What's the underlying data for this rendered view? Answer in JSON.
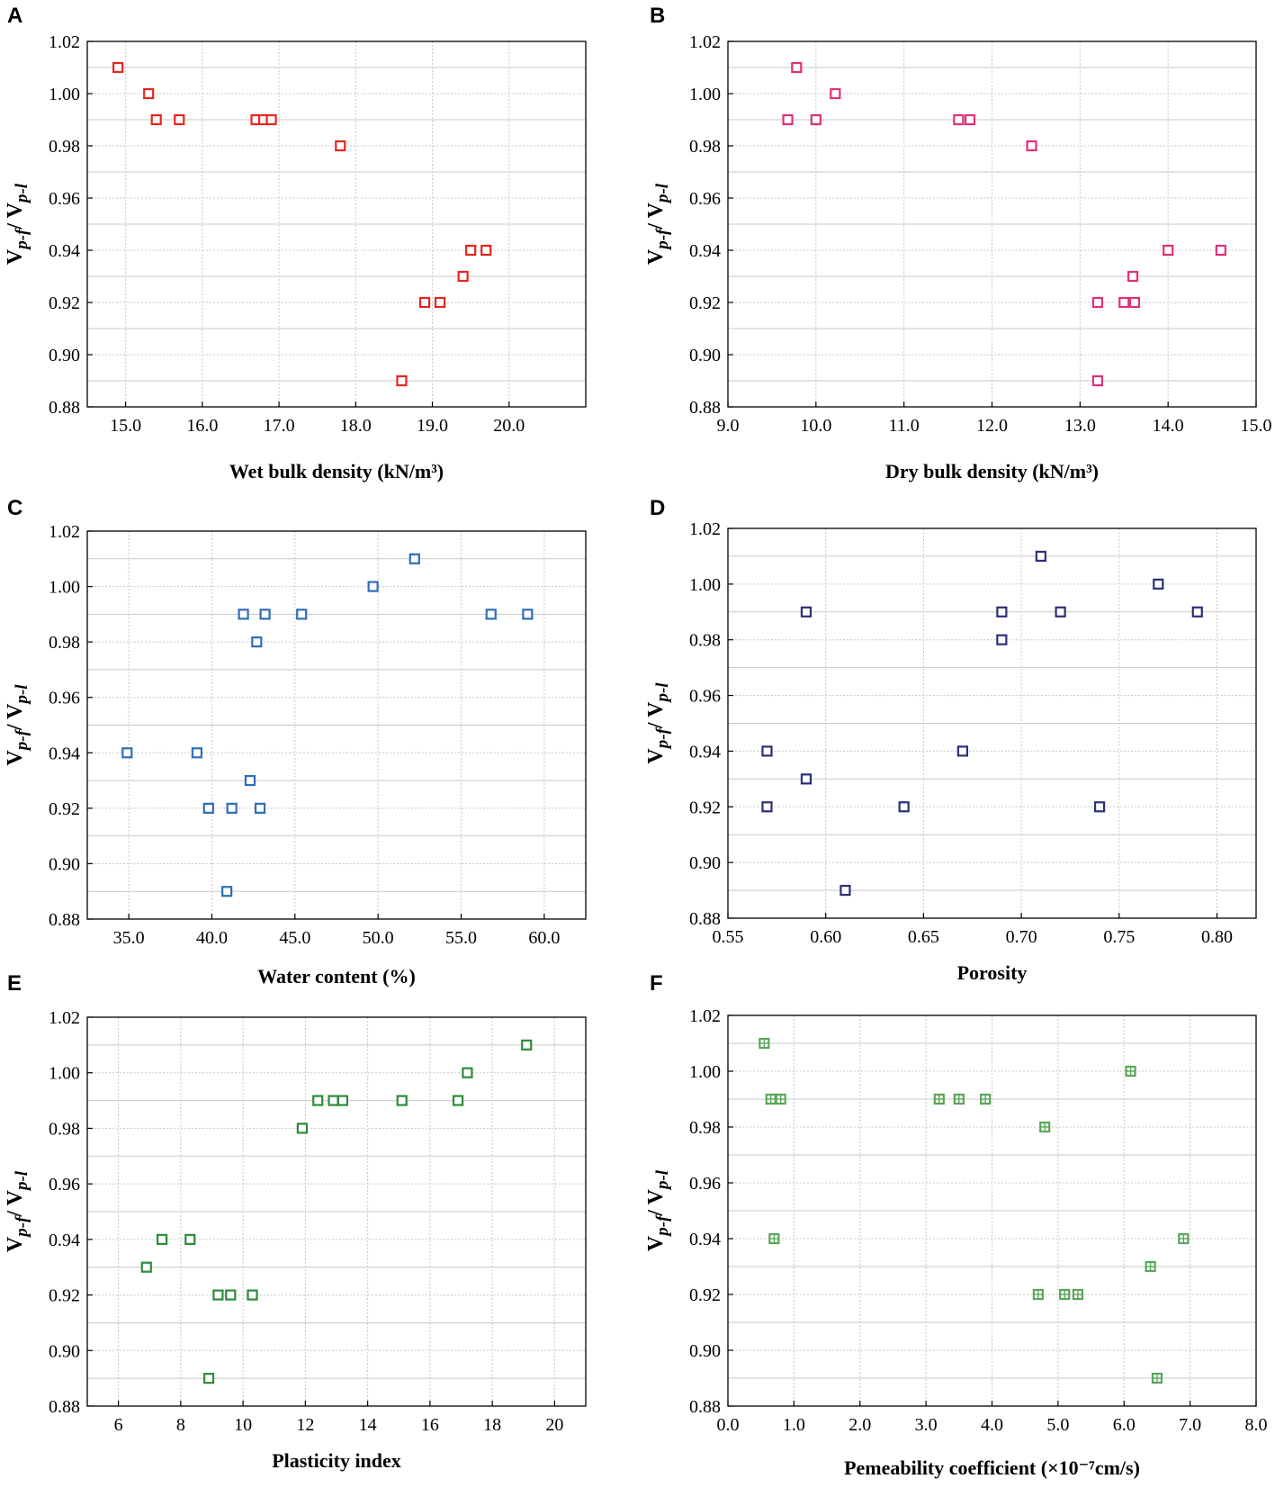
{
  "figure": {
    "y_axis_label": "V",
    "y_axis_label_sub1": "p-f",
    "y_axis_label_sep": "/ V",
    "y_axis_label_sub2": "p-l"
  },
  "chart_data": [
    {
      "id": "A",
      "type": "scatter",
      "panel_label": "A",
      "xlabel": "Wet bulk density (kN/m³)",
      "xlim": [
        14.5,
        21.0
      ],
      "ylim": [
        0.88,
        1.02
      ],
      "xticks": [
        15.0,
        16.0,
        17.0,
        18.0,
        19.0,
        20.0
      ],
      "xtick_labels": [
        "15.0",
        "16.0",
        "17.0",
        "18.0",
        "19.0",
        "20.0"
      ],
      "yticks": [
        0.88,
        0.9,
        0.92,
        0.94,
        0.96,
        0.98,
        1.0,
        1.02
      ],
      "ytick_labels": [
        "0.88",
        "0.90",
        "0.92",
        "0.94",
        "0.96",
        "0.98",
        "1.00",
        "1.02"
      ],
      "marker_color": "#e8251e",
      "marker": "square",
      "grid": true,
      "points": [
        [
          14.9,
          1.01
        ],
        [
          15.3,
          1.0
        ],
        [
          15.4,
          0.99
        ],
        [
          15.7,
          0.99
        ],
        [
          16.7,
          0.99
        ],
        [
          16.8,
          0.99
        ],
        [
          16.9,
          0.99
        ],
        [
          17.8,
          0.98
        ],
        [
          18.6,
          0.89
        ],
        [
          18.9,
          0.92
        ],
        [
          19.1,
          0.92
        ],
        [
          19.4,
          0.93
        ],
        [
          19.5,
          0.94
        ],
        [
          19.7,
          0.94
        ]
      ]
    },
    {
      "id": "B",
      "type": "scatter",
      "panel_label": "B",
      "xlabel": "Dry bulk density (kN/m³)",
      "xlim": [
        9.0,
        15.0
      ],
      "ylim": [
        0.88,
        1.02
      ],
      "xticks": [
        9.0,
        10.0,
        11.0,
        12.0,
        13.0,
        14.0,
        15.0
      ],
      "xtick_labels": [
        "9.0",
        "10.0",
        "11.0",
        "12.0",
        "13.0",
        "14.0",
        "15.0"
      ],
      "yticks": [
        0.88,
        0.9,
        0.92,
        0.94,
        0.96,
        0.98,
        1.0,
        1.02
      ],
      "ytick_labels": [
        "0.88",
        "0.90",
        "0.92",
        "0.94",
        "0.96",
        "0.98",
        "1.00",
        "1.02"
      ],
      "marker_color": "#e0307a",
      "marker": "square",
      "grid": true,
      "points": [
        [
          9.78,
          1.01
        ],
        [
          9.68,
          0.99
        ],
        [
          10.0,
          0.99
        ],
        [
          10.22,
          1.0
        ],
        [
          11.62,
          0.99
        ],
        [
          11.75,
          0.99
        ],
        [
          12.45,
          0.98
        ],
        [
          13.2,
          0.92
        ],
        [
          13.5,
          0.92
        ],
        [
          13.62,
          0.92
        ],
        [
          13.6,
          0.93
        ],
        [
          14.0,
          0.94
        ],
        [
          14.6,
          0.94
        ],
        [
          13.2,
          0.89
        ]
      ]
    },
    {
      "id": "C",
      "type": "scatter",
      "panel_label": "C",
      "xlabel": "Water content (%)",
      "xlim": [
        32.5,
        62.5
      ],
      "ylim": [
        0.88,
        1.02
      ],
      "xticks": [
        35.0,
        40.0,
        45.0,
        50.0,
        55.0,
        60.0
      ],
      "xtick_labels": [
        "35.0",
        "40.0",
        "45.0",
        "50.0",
        "55.0",
        "60.0"
      ],
      "yticks": [
        0.88,
        0.9,
        0.92,
        0.94,
        0.96,
        0.98,
        1.0,
        1.02
      ],
      "ytick_labels": [
        "0.88",
        "0.90",
        "0.92",
        "0.94",
        "0.96",
        "0.98",
        "1.00",
        "1.02"
      ],
      "marker_color": "#2f6db8",
      "marker": "square",
      "grid": true,
      "points": [
        [
          34.9,
          0.94
        ],
        [
          39.1,
          0.94
        ],
        [
          39.8,
          0.92
        ],
        [
          41.2,
          0.92
        ],
        [
          40.9,
          0.89
        ],
        [
          41.9,
          0.99
        ],
        [
          42.7,
          0.98
        ],
        [
          42.3,
          0.93
        ],
        [
          42.9,
          0.92
        ],
        [
          43.2,
          0.99
        ],
        [
          45.4,
          0.99
        ],
        [
          49.7,
          1.0
        ],
        [
          52.2,
          1.01
        ],
        [
          56.8,
          0.99
        ],
        [
          59.0,
          0.99
        ]
      ]
    },
    {
      "id": "D",
      "type": "scatter",
      "panel_label": "D",
      "xlabel": "Porosity",
      "xlim": [
        0.55,
        0.82
      ],
      "ylim": [
        0.88,
        1.02
      ],
      "xticks": [
        0.55,
        0.6,
        0.65,
        0.7,
        0.75,
        0.8
      ],
      "xtick_labels": [
        "0.55",
        "0.60",
        "0.65",
        "0.70",
        "0.75",
        "0.80"
      ],
      "yticks": [
        0.88,
        0.9,
        0.92,
        0.94,
        0.96,
        0.98,
        1.0,
        1.02
      ],
      "ytick_labels": [
        "0.88",
        "0.90",
        "0.92",
        "0.94",
        "0.96",
        "0.98",
        "1.00",
        "1.02"
      ],
      "marker_color": "#2b2f78",
      "marker": "square",
      "grid": true,
      "points": [
        [
          0.57,
          0.94
        ],
        [
          0.57,
          0.92
        ],
        [
          0.59,
          0.99
        ],
        [
          0.59,
          0.93
        ],
        [
          0.61,
          0.89
        ],
        [
          0.64,
          0.92
        ],
        [
          0.67,
          0.94
        ],
        [
          0.69,
          0.99
        ],
        [
          0.69,
          0.98
        ],
        [
          0.71,
          1.01
        ],
        [
          0.72,
          0.99
        ],
        [
          0.74,
          0.92
        ],
        [
          0.77,
          1.0
        ],
        [
          0.79,
          0.99
        ]
      ]
    },
    {
      "id": "E",
      "type": "scatter",
      "panel_label": "E",
      "xlabel": "Plasticity index",
      "xlim": [
        5.0,
        21.0
      ],
      "ylim": [
        0.88,
        1.02
      ],
      "xticks": [
        6,
        8,
        10,
        12,
        14,
        16,
        18,
        20
      ],
      "xtick_labels": [
        "6",
        "8",
        "10",
        "12",
        "14",
        "16",
        "18",
        "20"
      ],
      "yticks": [
        0.88,
        0.9,
        0.92,
        0.94,
        0.96,
        0.98,
        1.0,
        1.02
      ],
      "ytick_labels": [
        "0.88",
        "0.90",
        "0.92",
        "0.94",
        "0.96",
        "0.98",
        "1.00",
        "1.02"
      ],
      "marker_color": "#2e8b3a",
      "marker": "square",
      "grid": true,
      "points": [
        [
          6.9,
          0.93
        ],
        [
          7.4,
          0.94
        ],
        [
          8.3,
          0.94
        ],
        [
          8.9,
          0.89
        ],
        [
          9.2,
          0.92
        ],
        [
          9.6,
          0.92
        ],
        [
          10.3,
          0.92
        ],
        [
          11.9,
          0.98
        ],
        [
          12.4,
          0.99
        ],
        [
          12.9,
          0.99
        ],
        [
          13.2,
          0.99
        ],
        [
          15.1,
          0.99
        ],
        [
          16.9,
          0.99
        ],
        [
          17.2,
          1.0
        ],
        [
          19.1,
          1.01
        ]
      ]
    },
    {
      "id": "F",
      "type": "scatter",
      "panel_label": "F",
      "xlabel": "Pemeability coefficient  (×10⁻⁷cm/s)",
      "xlim": [
        0.0,
        8.0
      ],
      "ylim": [
        0.88,
        1.02
      ],
      "xticks": [
        0.0,
        1.0,
        2.0,
        3.0,
        4.0,
        5.0,
        6.0,
        7.0,
        8.0
      ],
      "xtick_labels": [
        "0.0",
        "1.0",
        "2.0",
        "3.0",
        "4.0",
        "5.0",
        "6.0",
        "7.0",
        "8.0"
      ],
      "yticks": [
        0.88,
        0.9,
        0.92,
        0.94,
        0.96,
        0.98,
        1.0,
        1.02
      ],
      "ytick_labels": [
        "0.88",
        "0.90",
        "0.92",
        "0.94",
        "0.96",
        "0.98",
        "1.00",
        "1.02"
      ],
      "marker_color": "#5aa55a",
      "marker": "crossed-square",
      "grid": true,
      "points": [
        [
          0.55,
          1.01
        ],
        [
          0.65,
          0.99
        ],
        [
          0.8,
          0.99
        ],
        [
          0.7,
          0.94
        ],
        [
          3.2,
          0.99
        ],
        [
          3.5,
          0.99
        ],
        [
          3.9,
          0.99
        ],
        [
          4.8,
          0.98
        ],
        [
          4.7,
          0.92
        ],
        [
          5.1,
          0.92
        ],
        [
          5.3,
          0.92
        ],
        [
          6.1,
          1.0
        ],
        [
          6.4,
          0.93
        ],
        [
          6.5,
          0.89
        ],
        [
          6.9,
          0.94
        ]
      ]
    }
  ]
}
